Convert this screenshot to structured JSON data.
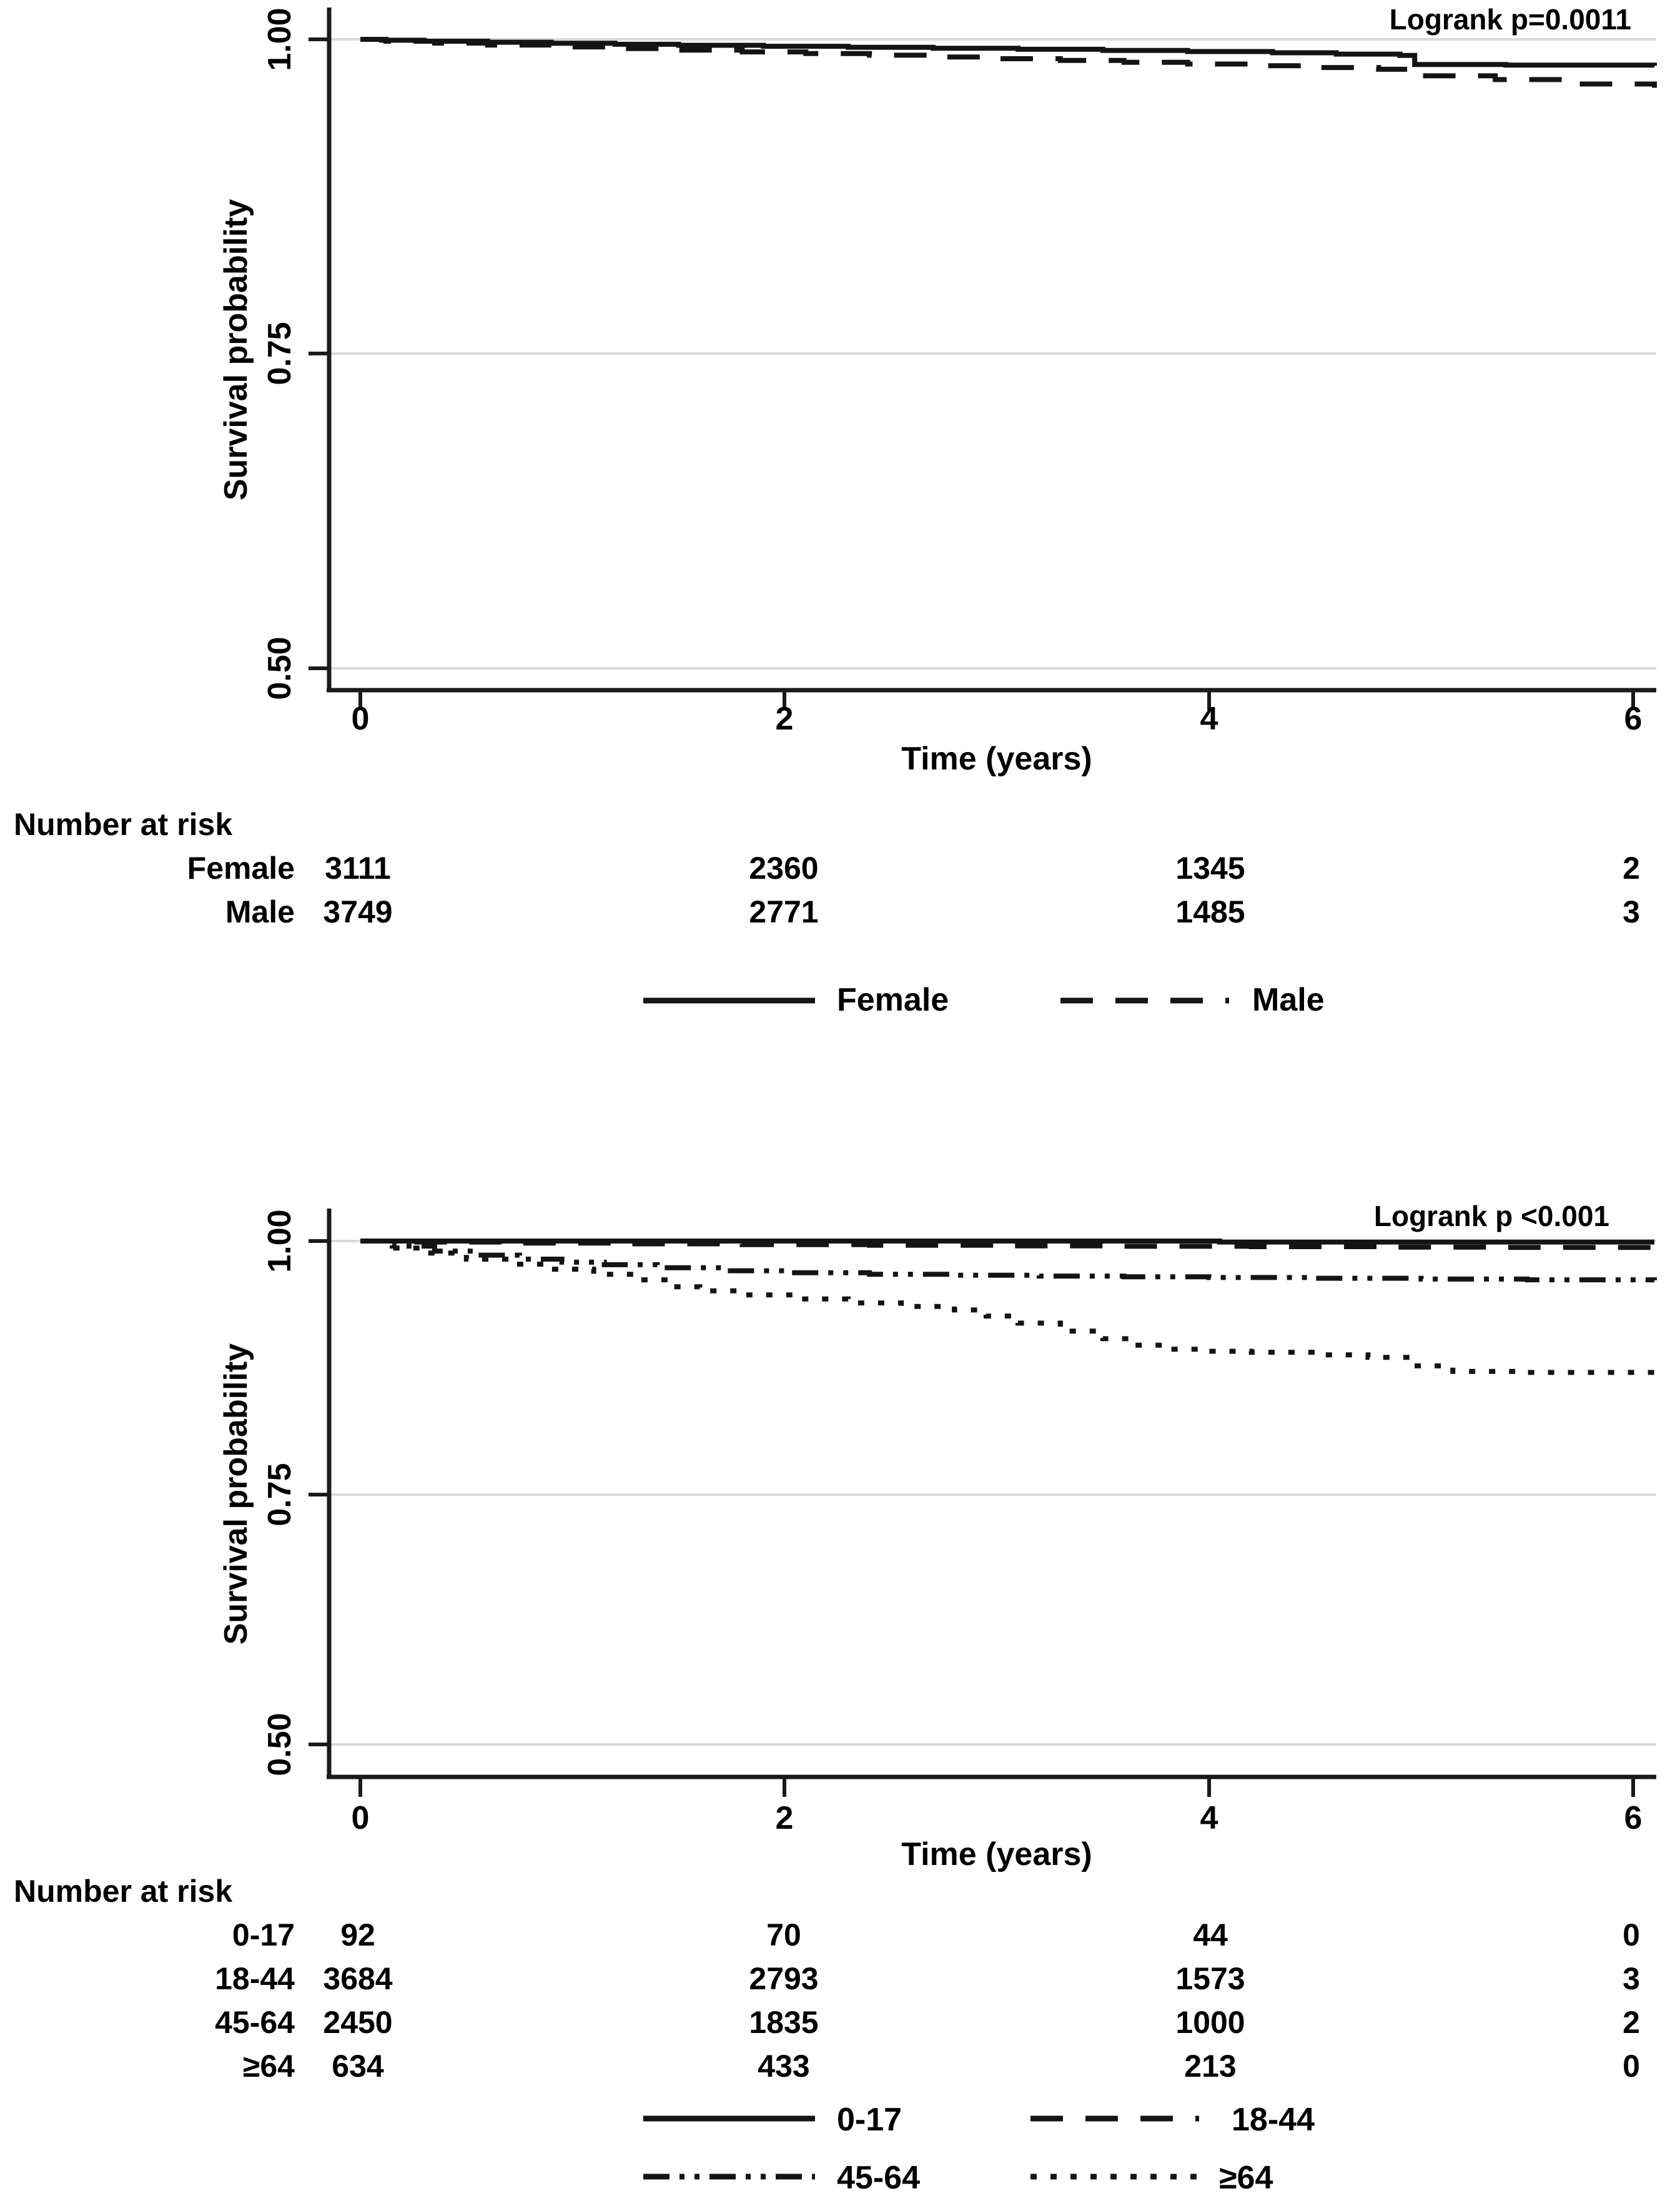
{
  "figure": {
    "panels": [
      {
        "name": "survival-by-sex",
        "annotation": "Logrank p=0.0011",
        "y_axis_label": "Survival probability",
        "x_axis_label": "Time (years)",
        "y_tick_labels": [
          "1.00",
          "0.75",
          "0.50"
        ],
        "x_tick_labels": [
          "0",
          "2",
          "4",
          "6"
        ],
        "number_at_risk": {
          "title": "Number at risk",
          "rows": [
            {
              "label": "Female",
              "values": [
                "3111",
                "2360",
                "1345",
                "2"
              ]
            },
            {
              "label": "Male",
              "values": [
                "3749",
                "2771",
                "1485",
                "3"
              ]
            }
          ]
        },
        "legend": [
          "Female",
          "Male"
        ]
      },
      {
        "name": "survival-by-age",
        "annotation": "Logrank p <0.001",
        "y_axis_label": "Survival probability",
        "x_axis_label": "Time (years)",
        "y_tick_labels": [
          "1.00",
          "0.75",
          "0.50"
        ],
        "x_tick_labels": [
          "0",
          "2",
          "4",
          "6"
        ],
        "number_at_risk": {
          "title": "Number at risk",
          "rows": [
            {
              "label": "0-17",
              "values": [
                "92",
                "70",
                "44",
                "0"
              ]
            },
            {
              "label": "18-44",
              "values": [
                "3684",
                "2793",
                "1573",
                "3"
              ]
            },
            {
              "label": "45-64",
              "values": [
                "2450",
                "1835",
                "1000",
                "2"
              ]
            },
            {
              "label": "≥64",
              "values": [
                "634",
                "433",
                "213",
                "0"
              ]
            }
          ]
        },
        "legend": [
          "0-17",
          "18-44",
          "45-64",
          "≥64"
        ]
      }
    ]
  },
  "colors": {
    "curve": "#141414",
    "axis": "#1a1a1a",
    "grid": "#d9d9d9",
    "background": "#ffffff"
  },
  "chart_data": [
    {
      "type": "line",
      "subtype": "kaplan-meier-step",
      "annotation": "Logrank p=0.0011",
      "xlabel": "Time (years)",
      "ylabel": "Survival probability",
      "xlim": [
        0,
        6.1
      ],
      "ylim": [
        0.47,
        1.02
      ],
      "xticks": [
        0,
        2,
        4,
        6
      ],
      "yticks": [
        1.0,
        0.75,
        0.5
      ],
      "grid": "horizontal",
      "legend_position": "bottom",
      "number_at_risk_times": [
        0,
        2,
        4,
        6
      ],
      "series": [
        {
          "name": "Female",
          "line_style": "solid",
          "number_at_risk": [
            3111,
            2360,
            1345,
            2
          ],
          "points": [
            [
              0,
              1.0
            ],
            [
              0.1,
              0.9993
            ],
            [
              0.3,
              0.9985
            ],
            [
              0.6,
              0.9977
            ],
            [
              0.9,
              0.9969
            ],
            [
              1.2,
              0.9961
            ],
            [
              1.5,
              0.9953
            ],
            [
              1.9,
              0.9945
            ],
            [
              2.3,
              0.9937
            ],
            [
              2.7,
              0.9929
            ],
            [
              3.1,
              0.9921
            ],
            [
              3.5,
              0.9912
            ],
            [
              3.9,
              0.9903
            ],
            [
              4.3,
              0.9893
            ],
            [
              4.6,
              0.9883
            ],
            [
              4.9,
              0.9872
            ],
            [
              4.97,
              0.98
            ],
            [
              5.4,
              0.9795
            ],
            [
              6.1,
              0.979
            ]
          ]
        },
        {
          "name": "Male",
          "line_style": "dashed",
          "number_at_risk": [
            3749,
            2771,
            1485,
            3
          ],
          "points": [
            [
              0,
              1.0
            ],
            [
              0.12,
              0.9985
            ],
            [
              0.35,
              0.997
            ],
            [
              0.6,
              0.9955
            ],
            [
              0.9,
              0.994
            ],
            [
              1.2,
              0.9927
            ],
            [
              1.5,
              0.9914
            ],
            [
              1.8,
              0.99
            ],
            [
              2.1,
              0.9887
            ],
            [
              2.4,
              0.9874
            ],
            [
              2.7,
              0.986
            ],
            [
              3.0,
              0.9846
            ],
            [
              3.3,
              0.9832
            ],
            [
              3.6,
              0.9818
            ],
            [
              3.9,
              0.9804
            ],
            [
              4.2,
              0.979
            ],
            [
              4.5,
              0.9776
            ],
            [
              4.8,
              0.9762
            ],
            [
              5.0,
              0.971
            ],
            [
              5.35,
              0.968
            ],
            [
              5.7,
              0.9645
            ],
            [
              6.1,
              0.9615
            ]
          ]
        }
      ]
    },
    {
      "type": "line",
      "subtype": "kaplan-meier-step",
      "annotation": "Logrank p <0.001",
      "xlabel": "Time (years)",
      "ylabel": "Survival probability",
      "xlim": [
        0,
        6.1
      ],
      "ylim": [
        0.47,
        1.02
      ],
      "xticks": [
        0,
        2,
        4,
        6
      ],
      "yticks": [
        1.0,
        0.75,
        0.5
      ],
      "grid": "horizontal",
      "legend_position": "bottom",
      "number_at_risk_times": [
        0,
        2,
        4,
        6
      ],
      "series": [
        {
          "name": "0-17",
          "line_style": "solid",
          "number_at_risk": [
            92,
            70,
            44,
            0
          ],
          "points": [
            [
              0,
              1.0
            ],
            [
              4.0,
              1.0
            ],
            [
              4.05,
              0.999
            ],
            [
              6.1,
              0.999
            ]
          ]
        },
        {
          "name": "18-44",
          "line_style": "dashed",
          "number_at_risk": [
            3684,
            2793,
            1573,
            3
          ],
          "points": [
            [
              0,
              1.0
            ],
            [
              0.25,
              0.999
            ],
            [
              0.7,
              0.998
            ],
            [
              1.2,
              0.9972
            ],
            [
              1.8,
              0.9964
            ],
            [
              2.4,
              0.9958
            ],
            [
              3.0,
              0.9952
            ],
            [
              3.6,
              0.9948
            ],
            [
              4.2,
              0.9944
            ],
            [
              4.8,
              0.994
            ],
            [
              5.4,
              0.9937
            ],
            [
              6.1,
              0.9935
            ]
          ]
        },
        {
          "name": "45-64",
          "line_style": "dash-dot-dot",
          "number_at_risk": [
            2450,
            1835,
            1000,
            2
          ],
          "points": [
            [
              0,
              1.0
            ],
            [
              0.15,
              0.995
            ],
            [
              0.35,
              0.99
            ],
            [
              0.55,
              0.986
            ],
            [
              0.75,
              0.982
            ],
            [
              0.95,
              0.979
            ],
            [
              1.15,
              0.9765
            ],
            [
              1.4,
              0.9735
            ],
            [
              1.7,
              0.9705
            ],
            [
              2.0,
              0.9685
            ],
            [
              2.4,
              0.967
            ],
            [
              2.8,
              0.966
            ],
            [
              3.2,
              0.9652
            ],
            [
              3.6,
              0.9645
            ],
            [
              4.0,
              0.9638
            ],
            [
              4.5,
              0.963
            ],
            [
              5.0,
              0.9622
            ],
            [
              5.5,
              0.9615
            ],
            [
              6.1,
              0.961
            ]
          ]
        },
        {
          "name": "≥64",
          "line_style": "dotted",
          "number_at_risk": [
            634,
            433,
            213,
            0
          ],
          "points": [
            [
              0,
              1.0
            ],
            [
              0.15,
              0.993
            ],
            [
              0.3,
              0.988
            ],
            [
              0.5,
              0.982
            ],
            [
              0.7,
              0.977
            ],
            [
              0.9,
              0.972
            ],
            [
              1.1,
              0.967
            ],
            [
              1.3,
              0.9615
            ],
            [
              1.45,
              0.9545
            ],
            [
              1.6,
              0.9505
            ],
            [
              1.8,
              0.9465
            ],
            [
              2.05,
              0.9425
            ],
            [
              2.3,
              0.9385
            ],
            [
              2.55,
              0.935
            ],
            [
              2.8,
              0.9315
            ],
            [
              2.95,
              0.9255
            ],
            [
              3.1,
              0.9185
            ],
            [
              3.3,
              0.9105
            ],
            [
              3.5,
              0.903
            ],
            [
              3.65,
              0.8965
            ],
            [
              3.8,
              0.8925
            ],
            [
              4.0,
              0.8905
            ],
            [
              4.2,
              0.8895
            ],
            [
              4.5,
              0.887
            ],
            [
              4.75,
              0.8845
            ],
            [
              4.95,
              0.876
            ],
            [
              5.15,
              0.8705
            ],
            [
              5.5,
              0.8695
            ],
            [
              6.1,
              0.869
            ]
          ]
        }
      ]
    }
  ]
}
